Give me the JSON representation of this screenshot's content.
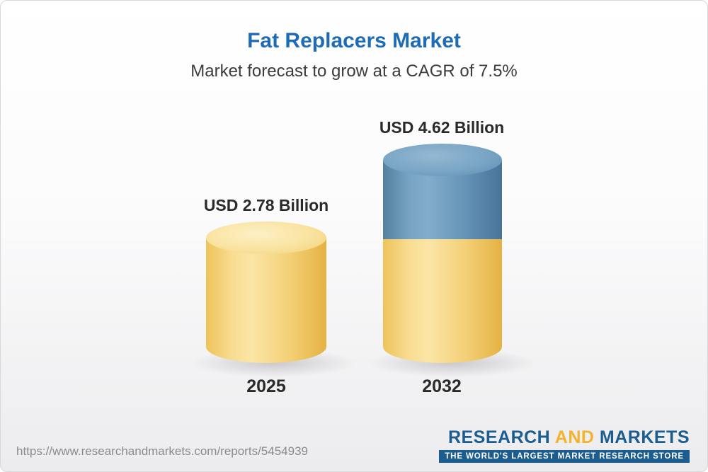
{
  "header": {
    "title": "Fat Replacers Market",
    "subtitle": "Market forecast to grow at a CAGR of 7.5%"
  },
  "chart_data": {
    "type": "bar",
    "title": "Fat Replacers Market",
    "subtitle": "Market forecast to grow at a CAGR of 7.5%",
    "cagr": "7.5%",
    "categories": [
      "2025",
      "2032"
    ],
    "values": [
      2.78,
      4.62
    ],
    "unit": "USD Billion",
    "data_labels": [
      "USD 2.78 Billion",
      "USD 4.62 Billion"
    ],
    "ylim": [
      0,
      5
    ],
    "grid": false,
    "legend": false,
    "bar_style": "3d-cylinder",
    "colors": {
      "bar_2025": "#f5d278",
      "bar_2032_bottom_segment": "#f5d278",
      "bar_2032_top_segment": "#6a98ba",
      "title_blue": "#1e6cb5"
    }
  },
  "bars": [
    {
      "label": "USD 2.78 Billion",
      "year": "2025"
    },
    {
      "label": "USD 4.62 Billion",
      "year": "2032"
    }
  ],
  "footer": {
    "url": "https://www.researchandmarkets.com/reports/5454939",
    "logo": {
      "research": "RESEARCH",
      "and": "AND",
      "markets": "MARKETS",
      "tagline": "THE WORLD'S LARGEST MARKET RESEARCH STORE",
      "blue": "#1c5d8f",
      "gold": "#f0b42e"
    }
  }
}
